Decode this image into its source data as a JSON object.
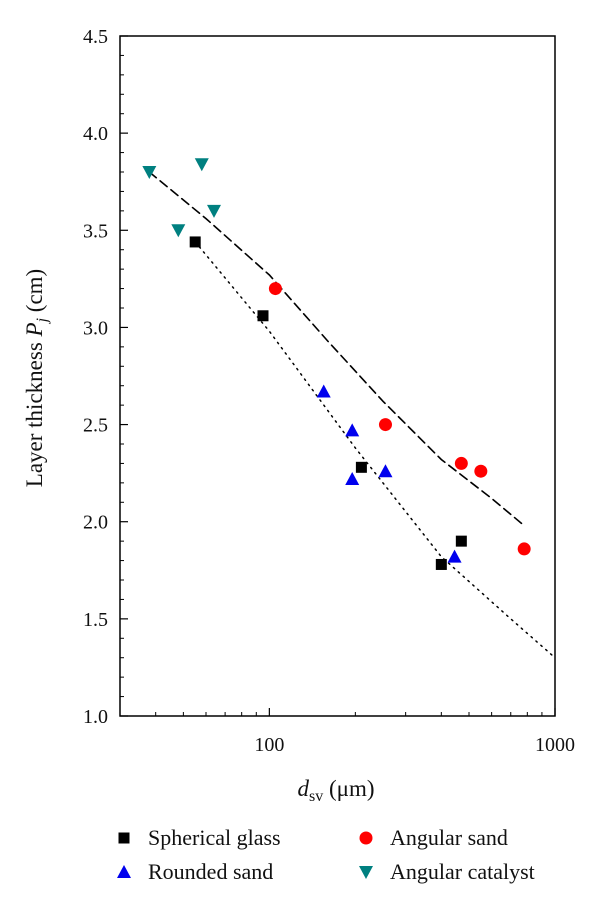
{
  "chart_data": {
    "type": "scatter",
    "xscale": "log",
    "xlim": [
      30,
      1000
    ],
    "ylim": [
      1.0,
      4.5
    ],
    "xticks": [
      100,
      1000
    ],
    "xtick_labels": [
      "100",
      "1000"
    ],
    "yticks": [
      1.0,
      1.5,
      2.0,
      2.5,
      3.0,
      3.5,
      4.0,
      4.5
    ],
    "ytick_labels": [
      "1.0",
      "1.5",
      "2.0",
      "2.5",
      "3.0",
      "3.5",
      "4.0",
      "4.5"
    ],
    "xlabel": {
      "base": "d",
      "sub": "sv",
      "rest": " (μm)"
    },
    "ylabel": {
      "base": "Layer thickness ",
      "var": "P",
      "sub": "j",
      "rest": " (cm)"
    },
    "grid": false,
    "legend_position": "bottom",
    "series": [
      {
        "name": "Spherical glass",
        "marker": "square",
        "color": "#000000",
        "x": [
          55,
          95,
          210,
          400,
          470
        ],
        "y": [
          3.44,
          3.06,
          2.28,
          1.78,
          1.9
        ]
      },
      {
        "name": "Angular sand",
        "marker": "circle",
        "color": "#ff0000",
        "x": [
          105,
          255,
          470,
          550,
          780
        ],
        "y": [
          3.2,
          2.5,
          2.3,
          2.26,
          1.86
        ]
      },
      {
        "name": "Rounded sand",
        "marker": "triangle-up",
        "color": "#0000ee",
        "x": [
          155,
          195,
          195,
          255,
          445
        ],
        "y": [
          2.67,
          2.47,
          2.22,
          2.26,
          1.82
        ]
      },
      {
        "name": "Angular catalyst",
        "marker": "triangle-down",
        "color": "#008080",
        "x": [
          38,
          48,
          58,
          64
        ],
        "y": [
          3.8,
          3.5,
          3.84,
          3.6
        ]
      }
    ],
    "fits": [
      {
        "style": "dashed",
        "color": "#000000",
        "x": [
          38,
          60,
          100,
          160,
          250,
          400,
          600,
          780
        ],
        "y": [
          3.8,
          3.56,
          3.27,
          2.93,
          2.62,
          2.32,
          2.12,
          1.98
        ]
      },
      {
        "style": "dotted",
        "color": "#000000",
        "x": [
          55,
          100,
          200,
          400,
          700,
          1000
        ],
        "y": [
          3.44,
          2.98,
          2.38,
          1.82,
          1.5,
          1.3
        ]
      }
    ]
  }
}
